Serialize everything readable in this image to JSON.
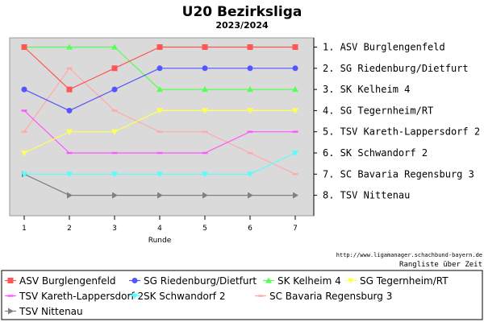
{
  "chart_data": {
    "type": "line",
    "title": "U20 Bezirksliga",
    "subtitle": "2023/2024",
    "xlabel": "Runde",
    "ylabel": "",
    "x": [
      1,
      2,
      3,
      4,
      5,
      6,
      7
    ],
    "ylim": [
      1,
      8
    ],
    "y_inverted": true,
    "grid": false,
    "legend_position": "bottom",
    "ranking_labels": [
      "1. ASV Burglengenfeld",
      "2. SG Riedenburg/Dietfurt",
      "3. SK Kelheim 4",
      "4. SG Tegernheim/RT",
      "5. TSV Kareth-Lappersdorf 2",
      "6. SK Schwandorf 2",
      "7. SC Bavaria Regensburg 3",
      "8. TSV Nittenau"
    ],
    "series": [
      {
        "name": "ASV Burglengenfeld",
        "color": "#ff5555",
        "marker": "square",
        "values": [
          1,
          3,
          2,
          1,
          1,
          1,
          1
        ]
      },
      {
        "name": "SG Riedenburg/Dietfurt",
        "color": "#5555ff",
        "marker": "circle",
        "values": [
          3,
          4,
          3,
          2,
          2,
          2,
          2
        ]
      },
      {
        "name": "SK Kelheim 4",
        "color": "#55ff55",
        "marker": "triangle-up",
        "values": [
          1,
          1,
          1,
          3,
          3,
          3,
          3
        ]
      },
      {
        "name": "SG Tegernheim/RT",
        "color": "#ffff55",
        "marker": "triangle-down",
        "values": [
          6,
          5,
          5,
          4,
          4,
          4,
          4
        ]
      },
      {
        "name": "TSV Kareth-Lappersdorf 2",
        "color": "#ff55ff",
        "marker": "dash",
        "values": [
          4,
          6,
          6,
          6,
          6,
          5,
          5
        ]
      },
      {
        "name": "SK Schwandorf 2",
        "color": "#55ffff",
        "marker": "triangle-down",
        "values": [
          7,
          7,
          7,
          7,
          7,
          7,
          6
        ]
      },
      {
        "name": "SC Bavaria Regensburg 3",
        "color": "#ffaaaa",
        "marker": "dash",
        "values": [
          5,
          2,
          4,
          5,
          5,
          6,
          7
        ]
      },
      {
        "name": "TSV Nittenau",
        "color": "#808080",
        "marker": "triangle-right",
        "values": [
          7,
          8,
          8,
          8,
          8,
          8,
          8
        ]
      }
    ]
  },
  "footer": {
    "url": "http://www.ligamanager.schachbund-bayern.de",
    "caption": "Rangliste über Zeit"
  }
}
